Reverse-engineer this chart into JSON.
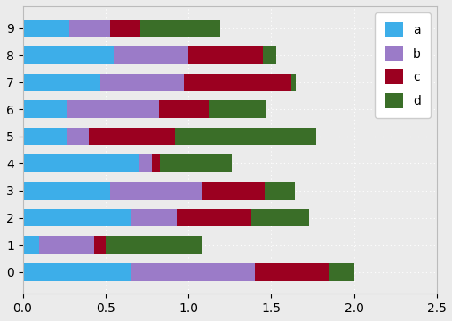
{
  "categories": [
    0,
    1,
    2,
    3,
    4,
    5,
    6,
    7,
    8,
    9
  ],
  "segments": {
    "a": [
      0.65,
      0.1,
      0.65,
      0.53,
      0.7,
      0.27,
      0.27,
      0.47,
      0.55,
      0.28
    ],
    "b": [
      0.75,
      0.33,
      0.28,
      0.55,
      0.08,
      0.13,
      0.55,
      0.5,
      0.45,
      0.25
    ],
    "c": [
      0.45,
      0.07,
      0.45,
      0.38,
      0.05,
      0.52,
      0.3,
      0.65,
      0.45,
      0.18
    ],
    "d": [
      0.15,
      0.58,
      0.35,
      0.18,
      0.43,
      0.85,
      0.35,
      0.03,
      0.08,
      0.48
    ]
  },
  "colors": {
    "a": "#3daee9",
    "b": "#9b7bc8",
    "c": "#9b0020",
    "d": "#3a6e28"
  },
  "xlim": [
    0,
    2.5
  ],
  "xticks": [
    0.0,
    0.5,
    1.0,
    1.5,
    2.0,
    2.5
  ],
  "background_color": "#ebebeb",
  "figsize": [
    5.1,
    3.62
  ],
  "dpi": 100
}
